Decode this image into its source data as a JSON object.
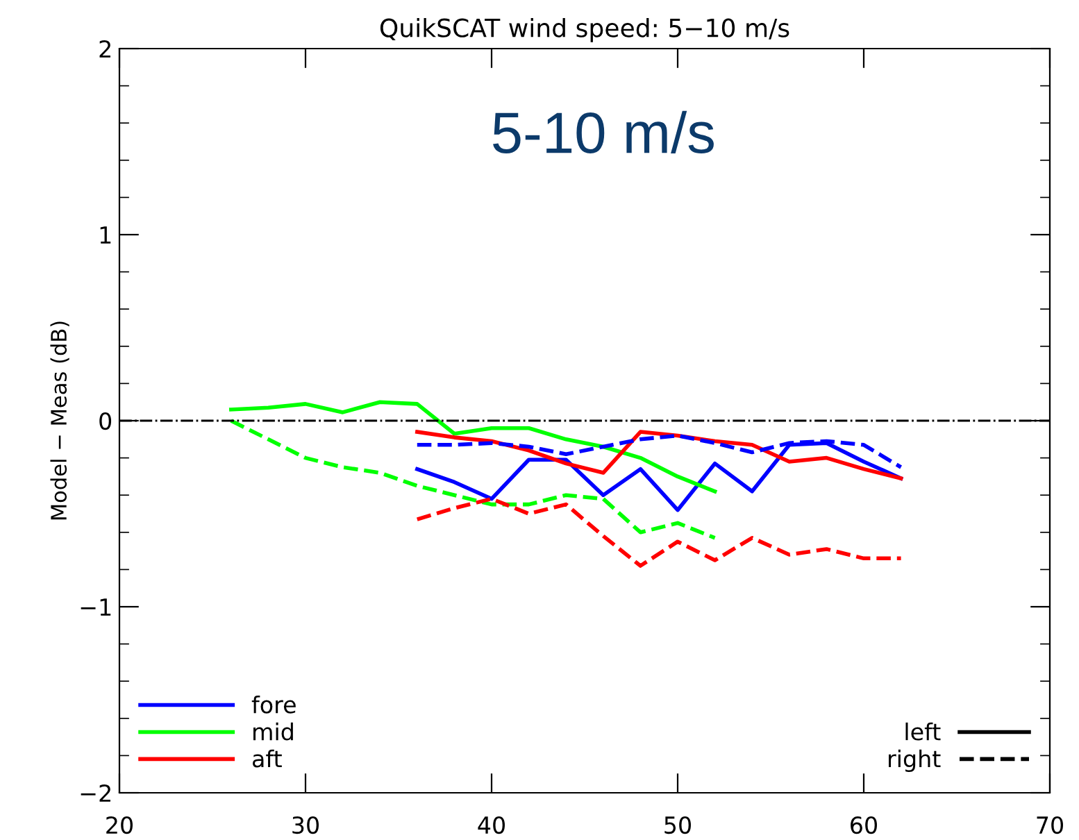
{
  "chart_data": {
    "type": "line",
    "title": "QuikSCAT wind speed: 5−10 m/s",
    "ylabel": "Model − Meas (dB)",
    "annotations": [
      "5-10 m/s",
      "left",
      "right"
    ],
    "xlim": [
      20,
      70
    ],
    "xticks": [
      20,
      30,
      40,
      50,
      60,
      70
    ],
    "ylim": [
      -2,
      2
    ],
    "yticks": [
      -2,
      -1,
      0,
      1,
      2
    ],
    "grid": false,
    "legend": "bottom left",
    "ref_lines": [
      {
        "axis": "y",
        "value": 0,
        "color": "#000000",
        "line_style": "dashdot"
      }
    ],
    "series": [
      {
        "name": "fore",
        "color": "#0000ff",
        "line_style": "solid",
        "x": [
          36,
          38,
          40,
          42,
          44,
          46,
          48,
          50,
          52,
          54,
          56,
          58,
          60,
          62
        ],
        "values": [
          -0.26,
          -0.33,
          -0.42,
          -0.21,
          -0.21,
          -0.4,
          -0.26,
          -0.48,
          -0.23,
          -0.38,
          -0.13,
          -0.12,
          -0.22,
          -0.31
        ]
      },
      {
        "name": "mid",
        "color": "#00ff00",
        "line_style": "solid",
        "x": [
          26,
          28,
          30,
          32,
          34,
          36,
          38,
          40,
          42,
          44,
          46,
          48,
          50,
          52
        ],
        "values": [
          0.06,
          0.07,
          0.09,
          0.045,
          0.1,
          0.09,
          -0.07,
          -0.04,
          -0.04,
          -0.1,
          -0.14,
          -0.2,
          -0.3,
          -0.38
        ]
      },
      {
        "name": "aft",
        "color": "#ff0000",
        "line_style": "solid",
        "x": [
          36,
          38,
          40,
          42,
          44,
          46,
          48,
          50,
          52,
          54,
          56,
          58,
          60,
          62
        ],
        "values": [
          -0.06,
          -0.09,
          -0.11,
          -0.16,
          -0.23,
          -0.28,
          -0.06,
          -0.08,
          -0.11,
          -0.13,
          -0.22,
          -0.2,
          -0.26,
          -0.31
        ]
      },
      {
        "color": "#0000ff",
        "line_style": "dashed",
        "x": [
          36,
          38,
          40,
          42,
          44,
          46,
          48,
          50,
          52,
          54,
          56,
          58,
          60,
          62
        ],
        "values": [
          -0.13,
          -0.13,
          -0.12,
          -0.14,
          -0.18,
          -0.14,
          -0.1,
          -0.08,
          -0.12,
          -0.17,
          -0.12,
          -0.11,
          -0.13,
          -0.25
        ]
      },
      {
        "color": "#00ff00",
        "line_style": "dashed",
        "x": [
          26,
          28,
          30,
          32,
          34,
          36,
          38,
          40,
          42,
          44,
          46,
          48,
          50,
          52
        ],
        "values": [
          0.0,
          -0.1,
          -0.2,
          -0.25,
          -0.28,
          -0.35,
          -0.4,
          -0.45,
          -0.45,
          -0.4,
          -0.42,
          -0.6,
          -0.55,
          -0.63
        ]
      },
      {
        "color": "#ff0000",
        "line_style": "dashed",
        "x": [
          36,
          38,
          40,
          42,
          44,
          46,
          48,
          50,
          52,
          54,
          56,
          58,
          60,
          62
        ],
        "values": [
          -0.53,
          -0.47,
          -0.42,
          -0.5,
          -0.45,
          -0.62,
          -0.78,
          -0.65,
          -0.75,
          -0.63,
          -0.72,
          -0.69,
          -0.74,
          -0.74
        ]
      }
    ]
  }
}
